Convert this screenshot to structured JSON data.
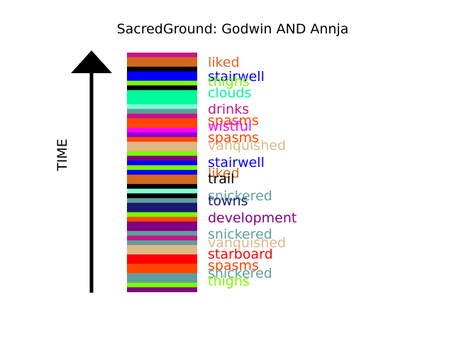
{
  "chart_data": {
    "type": "bar",
    "title": "SacredGround: Godwin AND Annja",
    "ylabel": "TIME",
    "stripes": [
      {
        "color": "#c71585"
      },
      {
        "color": "#d2691e"
      },
      {
        "color": "#d2691e"
      },
      {
        "color": "#000000"
      },
      {
        "color": "#0000ff"
      },
      {
        "color": "#0000ff"
      },
      {
        "color": "#7cfc00"
      },
      {
        "color": "#000000"
      },
      {
        "color": "#00fa9a"
      },
      {
        "color": "#00fa9a"
      },
      {
        "color": "#00fa9a"
      },
      {
        "color": "#7fffd4"
      },
      {
        "color": "#5f9ea0"
      },
      {
        "color": "#c71585"
      },
      {
        "color": "#ff4500"
      },
      {
        "color": "#ff4500"
      },
      {
        "color": "#ff00ff"
      },
      {
        "color": "#9400d3"
      },
      {
        "color": "#ff4500"
      },
      {
        "color": "#deb887"
      },
      {
        "color": "#deb887"
      },
      {
        "color": "#7cfc00"
      },
      {
        "color": "#800080"
      },
      {
        "color": "#0000ff"
      },
      {
        "color": "#7cfc00"
      },
      {
        "color": "#0000ff"
      },
      {
        "color": "#d2691e"
      },
      {
        "color": "#d2691e"
      },
      {
        "color": "#000000"
      },
      {
        "color": "#7fffd4"
      },
      {
        "color": "#000000"
      },
      {
        "color": "#5f9ea0"
      },
      {
        "color": "#191970"
      },
      {
        "color": "#191970"
      },
      {
        "color": "#7cfc00"
      },
      {
        "color": "#ff4500"
      },
      {
        "color": "#800080"
      },
      {
        "color": "#800080"
      },
      {
        "color": "#5f9ea0"
      },
      {
        "color": "#c71585"
      },
      {
        "color": "#5f9ea0"
      },
      {
        "color": "#deb887"
      },
      {
        "color": "#deb887"
      },
      {
        "color": "#ff0000"
      },
      {
        "color": "#ff0000"
      },
      {
        "color": "#ff4500"
      },
      {
        "color": "#ff4500"
      },
      {
        "color": "#5f9ea0"
      },
      {
        "color": "#5f9ea0"
      },
      {
        "color": "#7cfc00"
      },
      {
        "color": "#800080"
      }
    ],
    "labels": [
      {
        "text": "liked",
        "color": "#d2691e"
      },
      {
        "text": "stairwell",
        "color": "#0000ff"
      },
      {
        "text": "thighs",
        "color": "#7cfc00"
      },
      {
        "text": "clouds",
        "color": "#00fa9a"
      },
      {
        "text": "drinks",
        "color": "#c71585"
      },
      {
        "text": "spasms",
        "color": "#ff4500"
      },
      {
        "text": "wistful",
        "color": "#ff00ff"
      },
      {
        "text": "spasms",
        "color": "#ff4500"
      },
      {
        "text": "vanquished",
        "color": "#deb887"
      },
      {
        "text": "stairwell",
        "color": "#0000ff"
      },
      {
        "text": "liked",
        "color": "#d2691e"
      },
      {
        "text": "trail",
        "color": "#000000"
      },
      {
        "text": "snickered",
        "color": "#5f9ea0"
      },
      {
        "text": "towns",
        "color": "#191970"
      },
      {
        "text": "development",
        "color": "#800080"
      },
      {
        "text": "snickered",
        "color": "#5f9ea0"
      },
      {
        "text": "vanquished",
        "color": "#deb887"
      },
      {
        "text": "starboard",
        "color": "#ff0000"
      },
      {
        "text": "spasms",
        "color": "#ff4500"
      },
      {
        "text": "snickered",
        "color": "#5f9ea0"
      },
      {
        "text": "thighs",
        "color": "#7cfc00"
      }
    ]
  }
}
